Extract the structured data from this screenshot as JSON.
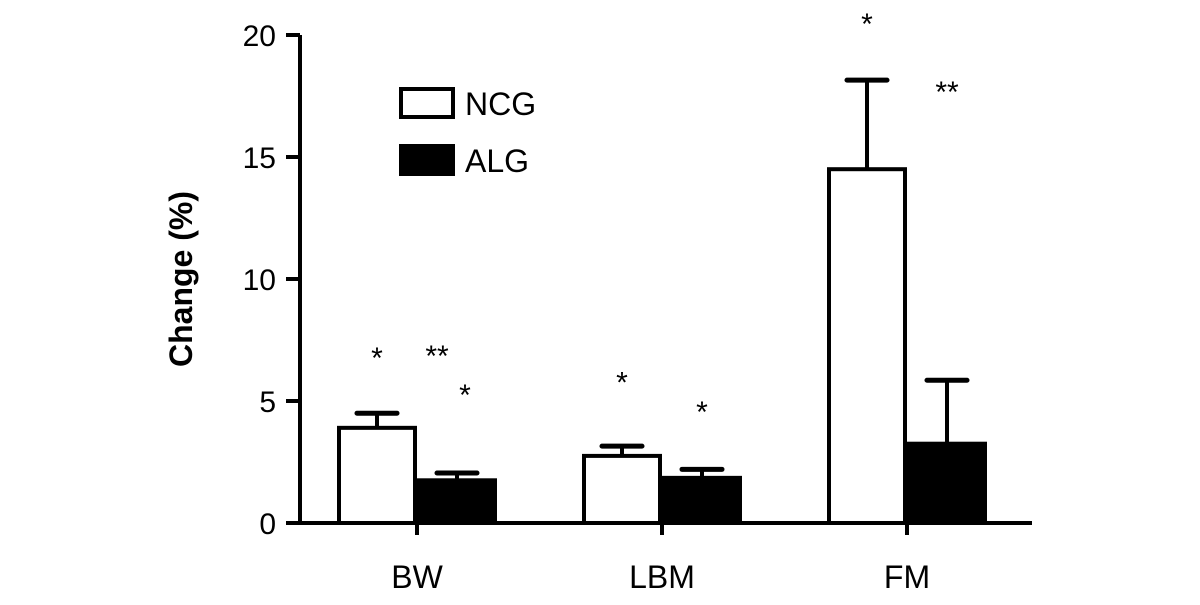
{
  "chart_data": {
    "type": "bar",
    "title": "",
    "xlabel": "",
    "ylabel": "Change (%)",
    "ylim": [
      0,
      20
    ],
    "yticks": [
      "0",
      "5",
      "10",
      "15",
      "20"
    ],
    "categories": [
      "BW",
      "LBM",
      "FM"
    ],
    "legend_position": "top-left",
    "grid": false,
    "series": [
      {
        "name": "NCG",
        "color": "#ffffff",
        "values": [
          3.9,
          2.75,
          14.5
        ],
        "error": [
          0.6,
          0.4,
          3.65
        ]
      },
      {
        "name": "ALG",
        "color": "#000000",
        "values": [
          1.75,
          1.85,
          3.25
        ],
        "error": [
          0.3,
          0.35,
          2.6
        ]
      }
    ],
    "annotations": [
      {
        "text": "*",
        "category": "BW",
        "series": "NCG",
        "y": 7.0
      },
      {
        "text": "**",
        "category": "BW",
        "series": "ALG",
        "y": 7.1
      },
      {
        "text": "*",
        "category": "BW",
        "series": "ALG",
        "y": 5.5
      },
      {
        "text": "*",
        "category": "LBM",
        "series": "NCG",
        "y": 6.0
      },
      {
        "text": "*",
        "category": "LBM",
        "series": "ALG",
        "y": 4.8
      },
      {
        "text": "*",
        "category": "FM",
        "series": "NCG",
        "y": 20.7
      },
      {
        "text": "**",
        "category": "FM",
        "series": "ALG",
        "y": 17.9
      }
    ]
  }
}
